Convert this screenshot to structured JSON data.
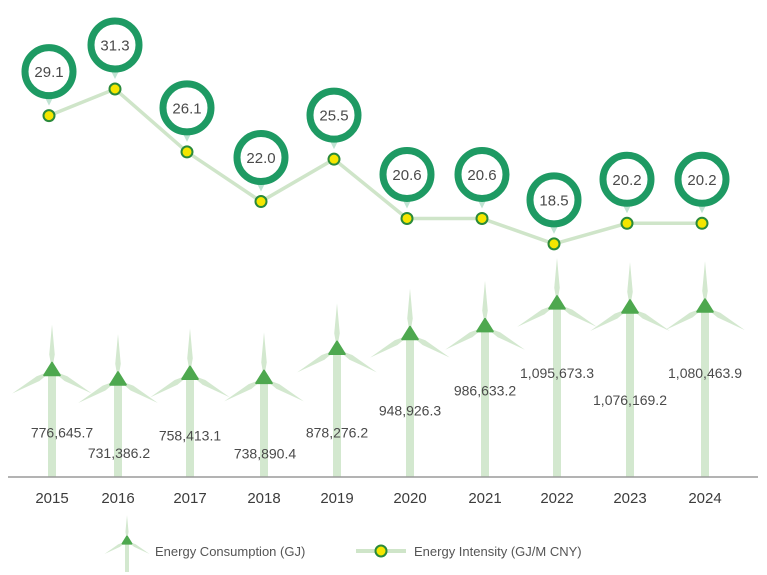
{
  "chart_data": {
    "type": "line+pictogram",
    "categories": [
      "2015",
      "2016",
      "2017",
      "2018",
      "2019",
      "2020",
      "2021",
      "2022",
      "2023",
      "2024"
    ],
    "series": [
      {
        "name": "Energy Consumption (GJ)",
        "display": "wind-turbine-height",
        "values": [
          776645.7,
          731386.2,
          758413.1,
          738890.4,
          878276.2,
          948926.3,
          986633.2,
          1095673.3,
          1076169.2,
          1080463.9
        ],
        "labels": [
          "776,645.7",
          "731,386.2",
          "758,413.1",
          "738,890.4",
          "878,276.2",
          "948,926.3",
          "986,633.2",
          "1,095,673.3",
          "1,076,169.2",
          "1,080,463.9"
        ]
      },
      {
        "name": "Energy Intensity (GJ/M CNY)",
        "display": "line",
        "values": [
          29.1,
          31.3,
          26.1,
          22.0,
          25.5,
          20.6,
          20.6,
          18.5,
          20.2,
          20.2
        ],
        "labels": [
          "29.1",
          "31.3",
          "26.1",
          "22.0",
          "25.5",
          "20.6",
          "20.6",
          "18.5",
          "20.2",
          "20.2"
        ]
      }
    ],
    "legend_placement": "bottom",
    "grid": false,
    "colors": {
      "bubble": "#1e9a63",
      "line": "#cfe5c9",
      "marker_fill": "#f5e600",
      "marker_stroke": "#2a8a3a",
      "turbine": "#d3e8cf",
      "hub": "#4ea84f",
      "axis": "#999999"
    }
  }
}
